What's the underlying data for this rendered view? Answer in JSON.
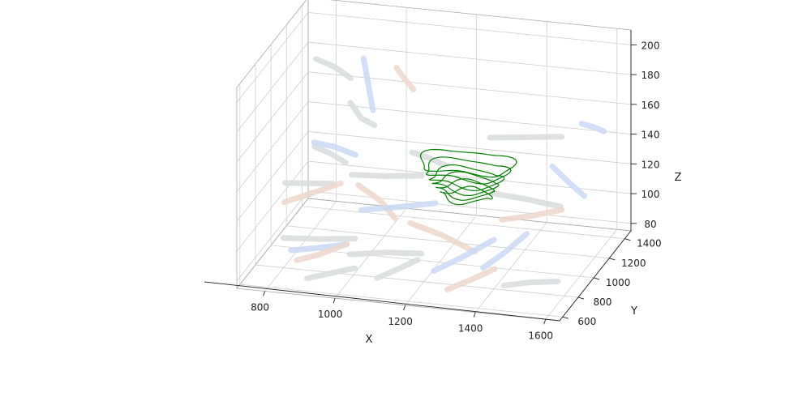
{
  "chart_data": {
    "type": "line3d",
    "title": "",
    "xlabel": "X",
    "ylabel": "Y",
    "zlabel": "Z",
    "xlim": [
      720,
      1640
    ],
    "ylim": [
      560,
      1480
    ],
    "zlim": [
      75,
      210
    ],
    "x_ticks": [
      "800",
      "1000",
      "1200",
      "1400",
      "1600"
    ],
    "y_ticks": [
      "600",
      "800",
      "1000",
      "1200",
      "1400"
    ],
    "z_ticks": [
      "80",
      "100",
      "120",
      "140",
      "160",
      "180",
      "200"
    ],
    "grid": true,
    "colors": {
      "tube_gray": "#d9dadd",
      "tube_blue": "#c9d8f3",
      "tube_peach": "#ecd7cc",
      "contour": "#007f00",
      "pane_back": "#f2f2f2",
      "pane_side": "#ebebeb",
      "pane_floor": "#e8e8e8"
    },
    "tubes": [
      {
        "color": "gray",
        "points": [
          [
            760,
            1400,
            175
          ],
          [
            820,
            1380,
            172
          ],
          [
            870,
            1350,
            168
          ]
        ]
      },
      {
        "color": "blue",
        "points": [
          [
            900,
            1380,
            180
          ],
          [
            920,
            1350,
            165
          ],
          [
            940,
            1320,
            150
          ]
        ]
      },
      {
        "color": "gray",
        "points": [
          [
            880,
            1300,
            155
          ],
          [
            920,
            1260,
            148
          ],
          [
            960,
            1250,
            145
          ]
        ]
      },
      {
        "color": "peach",
        "points": [
          [
            1000,
            1350,
            178
          ],
          [
            1030,
            1330,
            172
          ],
          [
            1060,
            1300,
            168
          ]
        ]
      },
      {
        "color": "gray",
        "points": [
          [
            800,
            1200,
            130
          ],
          [
            850,
            1180,
            128
          ],
          [
            900,
            1150,
            125
          ]
        ]
      },
      {
        "color": "blue",
        "points": [
          [
            820,
            1100,
            140
          ],
          [
            880,
            1080,
            140
          ],
          [
            950,
            1050,
            138
          ]
        ]
      },
      {
        "color": "gray",
        "points": [
          [
            760,
            1000,
            118
          ],
          [
            830,
            990,
            120
          ],
          [
            900,
            980,
            122
          ]
        ]
      },
      {
        "color": "peach",
        "points": [
          [
            780,
            900,
            112
          ],
          [
            850,
            920,
            118
          ],
          [
            930,
            950,
            125
          ]
        ]
      },
      {
        "color": "gray",
        "points": [
          [
            950,
            1000,
            128
          ],
          [
            1050,
            990,
            130
          ],
          [
            1150,
            1000,
            132
          ]
        ]
      },
      {
        "color": "peach",
        "points": [
          [
            980,
            950,
            125
          ],
          [
            1050,
            920,
            118
          ],
          [
            1100,
            880,
            110
          ]
        ]
      },
      {
        "color": "blue",
        "points": [
          [
            1000,
            900,
            112
          ],
          [
            1100,
            920,
            115
          ],
          [
            1200,
            950,
            118
          ]
        ]
      },
      {
        "color": "gray",
        "points": [
          [
            1100,
            1100,
            140
          ],
          [
            1150,
            1090,
            138
          ],
          [
            1200,
            1080,
            135
          ]
        ]
      },
      {
        "color": "gray",
        "points": [
          [
            800,
            800,
            95
          ],
          [
            900,
            810,
            96
          ],
          [
            1000,
            820,
            98
          ]
        ]
      },
      {
        "color": "blue",
        "points": [
          [
            830,
            760,
            90
          ],
          [
            900,
            780,
            92
          ],
          [
            980,
            800,
            95
          ]
        ]
      },
      {
        "color": "peach",
        "points": [
          [
            860,
            700,
            88
          ],
          [
            920,
            720,
            92
          ],
          [
            990,
            760,
            98
          ]
        ]
      },
      {
        "color": "gray",
        "points": [
          [
            1000,
            750,
            92
          ],
          [
            1100,
            760,
            95
          ],
          [
            1200,
            770,
            96
          ]
        ]
      },
      {
        "color": "peach",
        "points": [
          [
            1150,
            850,
            110
          ],
          [
            1250,
            820,
            106
          ],
          [
            1350,
            780,
            100
          ]
        ]
      },
      {
        "color": "blue",
        "points": [
          [
            1250,
            700,
            90
          ],
          [
            1320,
            740,
            98
          ],
          [
            1400,
            800,
            108
          ]
        ]
      },
      {
        "color": "gray",
        "points": [
          [
            1300,
            1200,
            148
          ],
          [
            1400,
            1210,
            150
          ],
          [
            1500,
            1220,
            152
          ]
        ]
      },
      {
        "color": "gray",
        "points": [
          [
            1350,
            1000,
            125
          ],
          [
            1450,
            990,
            124
          ],
          [
            1550,
            980,
            122
          ]
        ]
      },
      {
        "color": "peach",
        "points": [
          [
            1400,
            900,
            115
          ],
          [
            1480,
            920,
            118
          ],
          [
            1560,
            950,
            122
          ]
        ]
      },
      {
        "color": "blue",
        "points": [
          [
            1380,
            750,
            92
          ],
          [
            1430,
            800,
            100
          ],
          [
            1480,
            860,
            110
          ]
        ]
      },
      {
        "color": "gray",
        "points": [
          [
            1450,
            700,
            85
          ],
          [
            1520,
            710,
            88
          ],
          [
            1600,
            720,
            90
          ]
        ]
      },
      {
        "color": "peach",
        "points": [
          [
            1300,
            650,
            82
          ],
          [
            1360,
            680,
            88
          ],
          [
            1420,
            720,
            94
          ]
        ]
      },
      {
        "color": "blue",
        "points": [
          [
            1550,
            1250,
            160
          ],
          [
            1580,
            1260,
            158
          ],
          [
            1610,
            1270,
            155
          ]
        ]
      },
      {
        "color": "gray",
        "points": [
          [
            1100,
            650,
            85
          ],
          [
            1150,
            680,
            90
          ],
          [
            1200,
            720,
            95
          ]
        ]
      },
      {
        "color": "gray",
        "points": [
          [
            900,
            650,
            80
          ],
          [
            960,
            660,
            84
          ],
          [
            1030,
            680,
            88
          ]
        ]
      },
      {
        "color": "blue",
        "points": [
          [
            1500,
            1100,
            140
          ],
          [
            1550,
            1080,
            132
          ],
          [
            1600,
            1060,
            125
          ]
        ]
      }
    ],
    "contours": [
      {
        "z": 138,
        "rx": 130,
        "ry": 120
      },
      {
        "z": 133,
        "rx": 115,
        "ry": 105
      },
      {
        "z": 128,
        "rx": 100,
        "ry": 95
      },
      {
        "z": 124,
        "rx": 90,
        "ry": 85
      },
      {
        "z": 120,
        "rx": 80,
        "ry": 75
      },
      {
        "z": 116,
        "rx": 70,
        "ry": 65
      }
    ],
    "contour_center": [
      1260,
      1080
    ]
  }
}
